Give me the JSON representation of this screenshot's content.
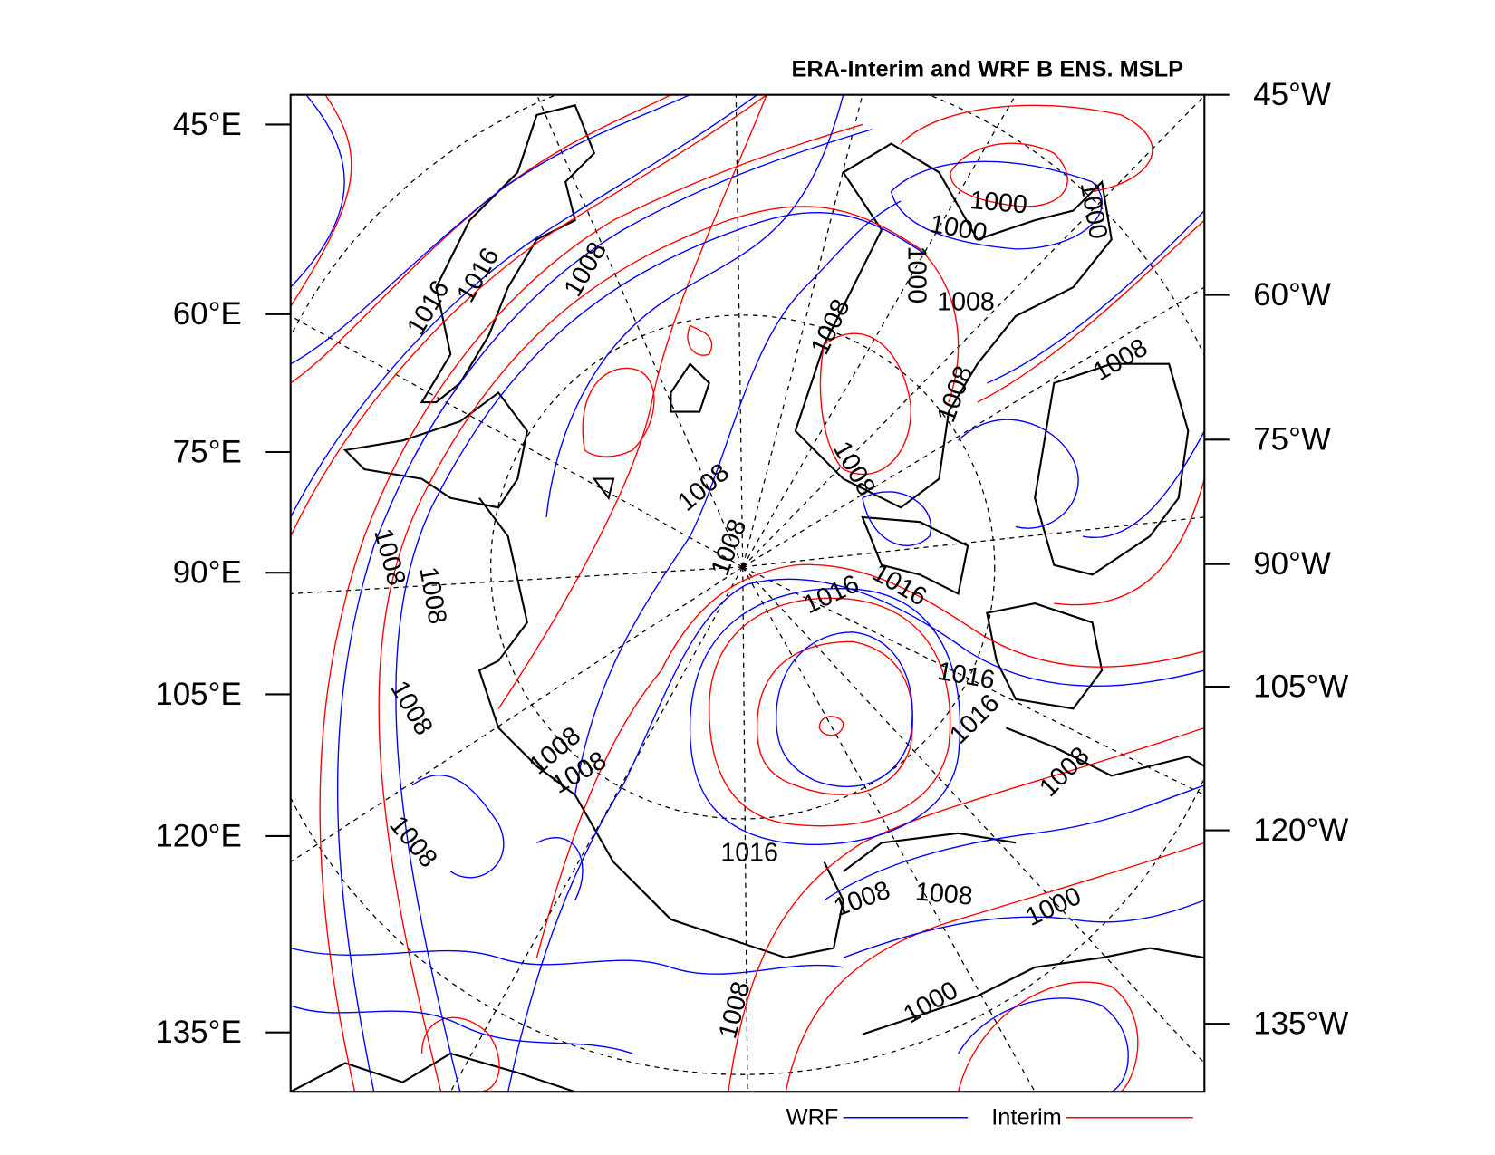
{
  "title": "ERA-Interim and WRF B ENS. MSLP",
  "left_axis_labels": [
    "45°E",
    "60°E",
    "75°E",
    "90°E",
    "105°E",
    "120°E",
    "135°E"
  ],
  "right_axis_labels": [
    "45°W",
    "60°W",
    "75°W",
    "90°W",
    "105°W",
    "120°W",
    "135°W"
  ],
  "contour_labels": [
    "1016",
    "1016",
    "1008",
    "1000",
    "1000",
    "1000",
    "1000",
    "1008",
    "1008",
    "1008",
    "1008",
    "1008",
    "1008",
    "1008",
    "1008",
    "1008",
    "1016",
    "1016",
    "1016",
    "1016",
    "1008",
    "1008",
    "1008",
    "1008",
    "1008",
    "1016",
    "1008",
    "1008",
    "1000",
    "1000",
    "1008"
  ],
  "legend": [
    {
      "name": "WRF",
      "color": "#0000ff"
    },
    {
      "name": "Interim",
      "color": "#ff0000"
    }
  ]
}
